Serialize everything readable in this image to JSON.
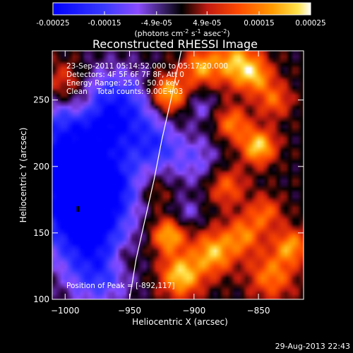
{
  "chart_data": {
    "type": "heatmap",
    "title": "Reconstructed RHESSI Image",
    "colorbar": {
      "ticks": [
        "-0.00025",
        "-0.00015",
        "-4.9e-05",
        "4.9e-05",
        "0.00015",
        "0.00025"
      ],
      "range": [
        -0.00025,
        0.00025
      ],
      "unit_prefix": "(photons cm",
      "unit_sup1": "-2",
      "unit_mid": " s",
      "unit_sup2": "-1",
      "unit_tail": " asec",
      "unit_sup3": "-2",
      "unit_close": ")"
    },
    "xlabel": "Heliocentric X (arcsec)",
    "ylabel": "Heliocentric Y (arcsec)",
    "xlim": [
      -1010,
      -815
    ],
    "ylim": [
      100,
      287
    ],
    "xticks": [
      -1000,
      -950,
      -900,
      -850
    ],
    "xtick_labels": [
      "−1000",
      "−950",
      "−900",
      "−850"
    ],
    "yticks": [
      100,
      150,
      200,
      250
    ],
    "ytick_labels": [
      "100",
      "150",
      "200",
      "250"
    ],
    "annotations": [
      "23-Sep-2011 05:14:52.000 to 05:17:20.000",
      "Detectors: 4F 5F 6F 7F 8F, Att 0",
      "Energy Range: 25.0 - 50.0 keV",
      "Clean    Total counts: 9.00E+03"
    ],
    "peak_label": "Position of Peak = [-892,117]",
    "peak": [
      -892,
      117
    ],
    "limb": [
      [
        -950,
        100
      ],
      [
        -945,
        130
      ],
      [
        -938,
        160
      ],
      [
        -931,
        190
      ],
      [
        -925,
        220
      ],
      [
        -918,
        250
      ],
      [
        -910,
        287
      ]
    ],
    "blobs": [
      {
        "x": -1000,
        "y": 205,
        "v": -1.0,
        "s": 30
      },
      {
        "x": -985,
        "y": 160,
        "v": -1.0,
        "s": 22
      },
      {
        "x": -960,
        "y": 240,
        "v": -0.8,
        "s": 22
      },
      {
        "x": -975,
        "y": 120,
        "v": -0.6,
        "s": 18
      },
      {
        "x": -965,
        "y": 185,
        "v": -0.5,
        "s": 15
      },
      {
        "x": -900,
        "y": 205,
        "v": -0.4,
        "s": 14
      },
      {
        "x": -930,
        "y": 215,
        "v": -0.5,
        "s": 12
      },
      {
        "x": -920,
        "y": 255,
        "v": 0.9,
        "s": 10
      },
      {
        "x": -895,
        "y": 275,
        "v": 0.7,
        "s": 9
      },
      {
        "x": -868,
        "y": 278,
        "v": 0.8,
        "s": 12
      },
      {
        "x": -852,
        "y": 268,
        "v": 0.6,
        "s": 9
      },
      {
        "x": -838,
        "y": 250,
        "v": 0.5,
        "s": 9
      },
      {
        "x": -870,
        "y": 232,
        "v": 0.6,
        "s": 9
      },
      {
        "x": -850,
        "y": 215,
        "v": 0.9,
        "s": 9
      },
      {
        "x": -875,
        "y": 185,
        "v": 0.5,
        "s": 10
      },
      {
        "x": -1000,
        "y": 262,
        "v": 0.5,
        "s": 12
      },
      {
        "x": -985,
        "y": 245,
        "v": 0.3,
        "s": 8
      },
      {
        "x": -955,
        "y": 130,
        "v": 0.3,
        "s": 8
      },
      {
        "x": -920,
        "y": 148,
        "v": 0.8,
        "s": 9
      },
      {
        "x": -910,
        "y": 118,
        "v": 0.9,
        "s": 11
      },
      {
        "x": -885,
        "y": 135,
        "v": 0.8,
        "s": 11
      },
      {
        "x": -862,
        "y": 148,
        "v": 0.6,
        "s": 10
      },
      {
        "x": -845,
        "y": 165,
        "v": 0.5,
        "s": 9
      },
      {
        "x": -840,
        "y": 118,
        "v": 0.6,
        "s": 12
      },
      {
        "x": -825,
        "y": 140,
        "v": 0.7,
        "s": 9
      },
      {
        "x": -930,
        "y": 180,
        "v": 0.25,
        "s": 8
      },
      {
        "x": -905,
        "y": 165,
        "v": -0.3,
        "s": 8
      },
      {
        "x": -895,
        "y": 245,
        "v": -0.3,
        "s": 8
      }
    ]
  },
  "footer": {
    "timestamp": "29-Aug-2013 22:43"
  }
}
